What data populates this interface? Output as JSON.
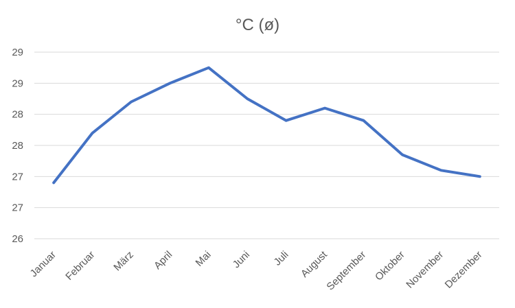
{
  "chart_data": {
    "type": "line",
    "title": "°C (ø)",
    "xlabel": "",
    "ylabel": "",
    "categories": [
      "Januar",
      "Februar",
      "März",
      "April",
      "Mai",
      "Juni",
      "Juli",
      "August",
      "September",
      "Oktober",
      "November",
      "Dezember"
    ],
    "series": [
      {
        "values": [
          26.9,
          27.7,
          28.2,
          28.5,
          28.75,
          28.25,
          27.9,
          28.1,
          27.9,
          27.35,
          27.1,
          27.0
        ],
        "color": "#4472C4"
      }
    ],
    "ylim": [
      26.0,
      29.0
    ],
    "yticks": [
      {
        "value": 26.0,
        "label": "26"
      },
      {
        "value": 26.5,
        "label": "27"
      },
      {
        "value": 27.0,
        "label": "27"
      },
      {
        "value": 27.5,
        "label": "28"
      },
      {
        "value": 28.0,
        "label": "28"
      },
      {
        "value": 28.5,
        "label": "29"
      },
      {
        "value": 29.0,
        "label": "29"
      }
    ],
    "grid": true,
    "legend": "none"
  }
}
